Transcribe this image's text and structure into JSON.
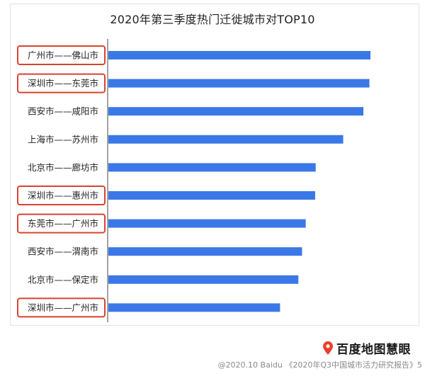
{
  "chart_data": {
    "type": "bar",
    "orientation": "horizontal",
    "title": "2020年第三季度热门迁徙城市对TOP10",
    "categories": [
      "广州市——佛山市",
      "深圳市——东莞市",
      "西安市——咸阳市",
      "上海市——苏州市",
      "北京市——廊坊市",
      "深圳市——惠州市",
      "东莞市——广州市",
      "西安市——渭南市",
      "北京市——保定市",
      "深圳市——广州市"
    ],
    "values": [
      100,
      99.6,
      97.3,
      89.6,
      79.1,
      78.9,
      75.3,
      73.9,
      72.5,
      65.5
    ],
    "highlighted": [
      true,
      true,
      false,
      false,
      false,
      true,
      true,
      false,
      false,
      true
    ],
    "xlim": [
      0,
      100
    ],
    "grid": false,
    "bar_color": "#3b78e7",
    "highlight_color": "#d8432f"
  },
  "brand": {
    "name": "百度地图慧眼",
    "pin_color": "#e8412c"
  },
  "footer": "@2020.10 Baidu 《2020年Q3中国城市活力研究报告》5"
}
